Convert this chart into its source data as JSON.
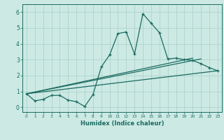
{
  "xlabel": "Humidex (Indice chaleur)",
  "xlim": [
    -0.5,
    23.5
  ],
  "ylim": [
    -0.3,
    6.5
  ],
  "xticks": [
    0,
    1,
    2,
    3,
    4,
    5,
    6,
    7,
    8,
    9,
    10,
    11,
    12,
    13,
    14,
    15,
    16,
    17,
    18,
    19,
    20,
    21,
    22,
    23
  ],
  "yticks": [
    0,
    1,
    2,
    3,
    4,
    5,
    6
  ],
  "bg_color": "#cce9e4",
  "grid_color": "#aed4cc",
  "line_color": "#1a6b60",
  "curve1_x": [
    0,
    1,
    2,
    3,
    4,
    5,
    6,
    7,
    8,
    9,
    10,
    11,
    12,
    13,
    14,
    15,
    16,
    17,
    18,
    19,
    20,
    21,
    22,
    23
  ],
  "curve1_y": [
    0.85,
    0.4,
    0.5,
    0.75,
    0.75,
    0.45,
    0.35,
    0.05,
    0.8,
    2.55,
    3.3,
    4.65,
    4.75,
    3.35,
    5.9,
    5.3,
    4.7,
    3.05,
    3.1,
    3.0,
    2.95,
    2.75,
    2.5,
    2.3
  ],
  "line2_x": [
    0,
    23
  ],
  "line2_y": [
    0.85,
    2.3
  ],
  "line3_x": [
    0,
    21
  ],
  "line3_y": [
    0.85,
    3.05
  ],
  "line4_x": [
    0,
    20
  ],
  "line4_y": [
    0.85,
    3.1
  ]
}
